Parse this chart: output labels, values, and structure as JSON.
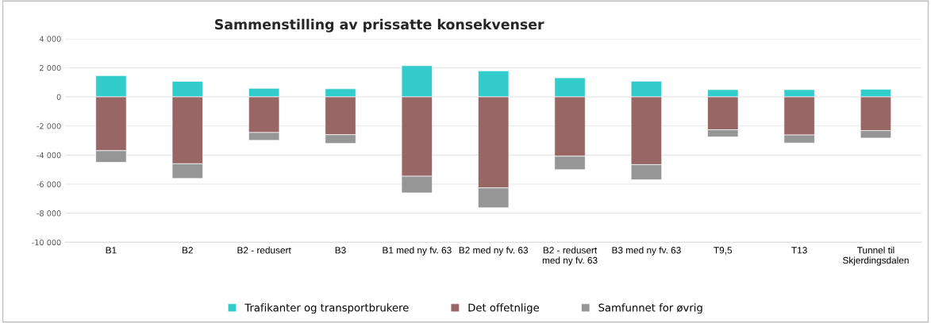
{
  "chart_data": {
    "type": "bar",
    "title": "Sammenstilling av prissatte konsekvenser",
    "stacked": true,
    "categories": [
      "B1",
      "B2",
      "B2 - redusert",
      "B3",
      "B1 med ny fv. 63",
      "B2 med ny fv. 63",
      "B2 - redusert\nmed ny fv. 63",
      "B3 med ny fv. 63",
      "T9,5",
      "T13",
      "Tunnel til\nSkjerdingsdalen"
    ],
    "series": [
      {
        "name": "Trafikanter og transportbrukere",
        "color": "#33cccc",
        "values": [
          1460,
          1070,
          590,
          560,
          2150,
          1790,
          1310,
          1080,
          500,
          500,
          530
        ]
      },
      {
        "name": "Det offetnlige",
        "color": "#996666",
        "values": [
          -3700,
          -4600,
          -2450,
          -2600,
          -5460,
          -6260,
          -4080,
          -4660,
          -2260,
          -2620,
          -2320
        ]
      },
      {
        "name": "Samfunnet for øvrig",
        "color": "#969696",
        "values": [
          -800,
          -1010,
          -540,
          -600,
          -1140,
          -1370,
          -930,
          -1040,
          -490,
          -550,
          -510
        ]
      }
    ],
    "ylim": [
      -10000,
      4000
    ],
    "yticks": [
      {
        "value": -10000,
        "label": "-10 000"
      },
      {
        "value": -8000,
        "label": "-8 000"
      },
      {
        "value": -6000,
        "label": "-6 000"
      },
      {
        "value": -4000,
        "label": "-4 000"
      },
      {
        "value": -2000,
        "label": "-2 000"
      },
      0,
      {
        "value": 2000,
        "label": "2 000"
      },
      {
        "value": 4000,
        "label": "4 000"
      }
    ],
    "grid": "y",
    "legend": "bottom"
  }
}
